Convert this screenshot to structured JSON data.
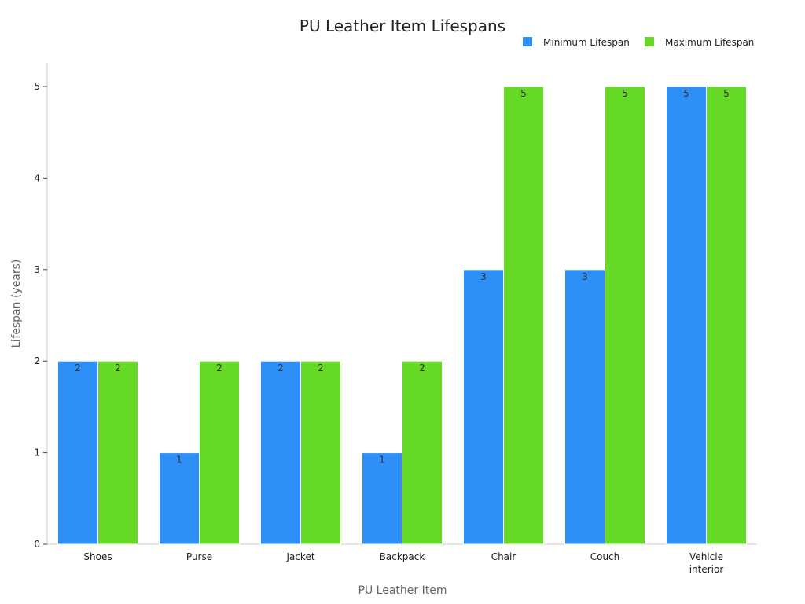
{
  "chart_data": {
    "type": "bar",
    "title": "PU Leather Item Lifespans",
    "xlabel": "PU Leather Item",
    "ylabel": "Lifespan (years)",
    "categories": [
      "Shoes",
      "Purse",
      "Jacket",
      "Backpack",
      "Chair",
      "Couch",
      "Vehicle interior"
    ],
    "category_lines": [
      [
        "Shoes"
      ],
      [
        "Purse"
      ],
      [
        "Jacket"
      ],
      [
        "Backpack"
      ],
      [
        "Chair"
      ],
      [
        "Couch"
      ],
      [
        "Vehicle",
        "interior"
      ]
    ],
    "series": [
      {
        "name": "Minimum Lifespan",
        "color": "#2e8ff6",
        "values": [
          2,
          1,
          2,
          1,
          3,
          3,
          5
        ]
      },
      {
        "name": "Maximum Lifespan",
        "color": "#66d926",
        "values": [
          2,
          2,
          2,
          2,
          5,
          5,
          5
        ]
      }
    ],
    "ylim": [
      0,
      5
    ],
    "yticks": [
      0,
      1,
      2,
      3,
      4,
      5
    ],
    "grid": false,
    "legend_position": "top-right"
  }
}
